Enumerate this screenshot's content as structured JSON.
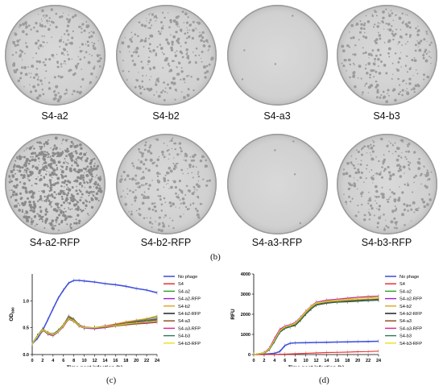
{
  "plates": [
    {
      "label": "S4-a2",
      "density": "medium"
    },
    {
      "label": "S4-b2",
      "density": "medium"
    },
    {
      "label": "S4-a3",
      "density": "none"
    },
    {
      "label": "S4-b3",
      "density": "medium"
    },
    {
      "label": "S4-a2-RFP",
      "density": "high"
    },
    {
      "label": "S4-b2-RFP",
      "density": "medium"
    },
    {
      "label": "S4-a3-RFP",
      "density": "none"
    },
    {
      "label": "S4-b3-RFP",
      "density": "medium"
    }
  ],
  "panel_labels": {
    "b": "(b)",
    "c": "(c)",
    "d": "(d)"
  },
  "chart_data": [
    {
      "type": "line",
      "ylabel_main": "OD",
      "ylabel_sub": "600",
      "xlabel": "Time post infection (h)",
      "xlim": [
        0,
        24
      ],
      "ylim": [
        0,
        1.5
      ],
      "xticks": [
        0,
        2,
        4,
        6,
        8,
        10,
        12,
        14,
        16,
        18,
        20,
        22,
        24
      ],
      "yticks": [
        0.0,
        0.5,
        1.0
      ],
      "ytick_labels": [
        "0.0",
        "0.5",
        "1.0"
      ],
      "series": [
        {
          "name": "No phage",
          "color": "#2b3ed6",
          "x": [
            0,
            1,
            2,
            3,
            4,
            5,
            6,
            7,
            8,
            9,
            10,
            12,
            14,
            16,
            18,
            20,
            22,
            24
          ],
          "values": [
            0.2,
            0.3,
            0.45,
            0.65,
            0.85,
            1.05,
            1.2,
            1.33,
            1.38,
            1.38,
            1.37,
            1.35,
            1.32,
            1.3,
            1.27,
            1.23,
            1.2,
            1.15
          ]
        },
        {
          "name": "S4",
          "color": "#e32626",
          "x": [
            0,
            1,
            2,
            3,
            4,
            5,
            6,
            7,
            8,
            9,
            10,
            12,
            14,
            16,
            18,
            20,
            22,
            24
          ],
          "values": [
            0.2,
            0.35,
            0.48,
            0.4,
            0.38,
            0.45,
            0.55,
            0.68,
            0.65,
            0.55,
            0.5,
            0.5,
            0.52,
            0.55,
            0.58,
            0.6,
            0.63,
            0.65
          ]
        },
        {
          "name": "S4-a2",
          "color": "#24a324",
          "x": [
            0,
            1,
            2,
            3,
            4,
            5,
            6,
            7,
            8,
            9,
            10,
            12,
            14,
            16,
            18,
            20,
            22,
            24
          ],
          "values": [
            0.2,
            0.35,
            0.47,
            0.4,
            0.37,
            0.44,
            0.55,
            0.72,
            0.66,
            0.55,
            0.5,
            0.5,
            0.53,
            0.56,
            0.6,
            0.63,
            0.66,
            0.7
          ]
        },
        {
          "name": "S4-a2-RFP",
          "color": "#a020c8",
          "x": [
            0,
            1,
            2,
            3,
            4,
            5,
            6,
            7,
            8,
            9,
            10,
            12,
            14,
            16,
            18,
            20,
            22,
            24
          ],
          "values": [
            0.2,
            0.34,
            0.46,
            0.38,
            0.35,
            0.42,
            0.52,
            0.66,
            0.62,
            0.53,
            0.49,
            0.48,
            0.5,
            0.53,
            0.56,
            0.58,
            0.6,
            0.62
          ]
        },
        {
          "name": "S4-b2",
          "color": "#e0a020",
          "x": [
            0,
            1,
            2,
            3,
            4,
            5,
            6,
            7,
            8,
            9,
            10,
            12,
            14,
            16,
            18,
            20,
            22,
            24
          ],
          "values": [
            0.2,
            0.35,
            0.47,
            0.41,
            0.38,
            0.45,
            0.56,
            0.69,
            0.65,
            0.56,
            0.51,
            0.5,
            0.53,
            0.57,
            0.61,
            0.64,
            0.67,
            0.72
          ]
        },
        {
          "name": "S4-b2-RFP",
          "color": "#111111",
          "x": [
            0,
            1,
            2,
            3,
            4,
            5,
            6,
            7,
            8,
            9,
            10,
            12,
            14,
            16,
            18,
            20,
            22,
            24
          ],
          "values": [
            0.2,
            0.35,
            0.46,
            0.4,
            0.37,
            0.44,
            0.54,
            0.67,
            0.63,
            0.54,
            0.5,
            0.5,
            0.52,
            0.55,
            0.58,
            0.6,
            0.62,
            0.64
          ]
        },
        {
          "name": "S4-a3",
          "color": "#8b4513",
          "x": [
            0,
            1,
            2,
            3,
            4,
            5,
            6,
            7,
            8,
            9,
            10,
            12,
            14,
            16,
            18,
            20,
            22,
            24
          ],
          "values": [
            0.2,
            0.34,
            0.45,
            0.39,
            0.36,
            0.43,
            0.53,
            0.66,
            0.62,
            0.54,
            0.5,
            0.49,
            0.51,
            0.53,
            0.55,
            0.57,
            0.58,
            0.6
          ]
        },
        {
          "name": "S4-a3-RFP",
          "color": "#e0208a",
          "x": [
            0,
            1,
            2,
            3,
            4,
            5,
            6,
            7,
            8,
            9,
            10,
            12,
            14,
            16,
            18,
            20,
            22,
            24
          ],
          "values": [
            0.2,
            0.34,
            0.46,
            0.4,
            0.37,
            0.44,
            0.55,
            0.7,
            0.65,
            0.55,
            0.51,
            0.5,
            0.53,
            0.56,
            0.59,
            0.62,
            0.64,
            0.67
          ]
        },
        {
          "name": "S4-b3",
          "color": "#2a7a5a",
          "x": [
            0,
            1,
            2,
            3,
            4,
            5,
            6,
            7,
            8,
            9,
            10,
            12,
            14,
            16,
            18,
            20,
            22,
            24
          ],
          "values": [
            0.2,
            0.35,
            0.47,
            0.41,
            0.38,
            0.45,
            0.55,
            0.68,
            0.64,
            0.55,
            0.5,
            0.5,
            0.52,
            0.55,
            0.58,
            0.61,
            0.63,
            0.66
          ]
        },
        {
          "name": "S4-b3-RFP",
          "color": "#e8e020",
          "x": [
            0,
            1,
            2,
            3,
            4,
            5,
            6,
            7,
            8,
            9,
            10,
            12,
            14,
            16,
            18,
            20,
            22,
            24
          ],
          "values": [
            0.2,
            0.34,
            0.46,
            0.4,
            0.37,
            0.43,
            0.54,
            0.67,
            0.63,
            0.54,
            0.5,
            0.5,
            0.52,
            0.54,
            0.57,
            0.59,
            0.61,
            0.63
          ]
        }
      ]
    },
    {
      "type": "line",
      "ylabel_main": "RFU",
      "ylabel_sub": "",
      "xlabel": "Time post infection (h)",
      "xlim": [
        0,
        24
      ],
      "ylim": [
        0,
        4000
      ],
      "xticks": [
        0,
        2,
        4,
        6,
        8,
        10,
        12,
        14,
        16,
        18,
        20,
        22,
        24
      ],
      "yticks": [
        0,
        1000,
        2000,
        3000,
        4000
      ],
      "ytick_labels": [
        "0",
        "1000",
        "2000",
        "3000",
        "4000"
      ],
      "series": [
        {
          "name": "No phage",
          "color": "#2b3ed6",
          "x": [
            0,
            2,
            4,
            5,
            6,
            7,
            8,
            10,
            12,
            14,
            16,
            18,
            20,
            22,
            24
          ],
          "values": [
            0,
            20,
            60,
            150,
            450,
            560,
            580,
            590,
            600,
            610,
            620,
            630,
            640,
            650,
            660
          ]
        },
        {
          "name": "S4",
          "color": "#e32626",
          "x": [
            0,
            2,
            4,
            6,
            8,
            10,
            12,
            14,
            16,
            18,
            20,
            22,
            24
          ],
          "values": [
            0,
            0,
            10,
            20,
            40,
            60,
            80,
            100,
            110,
            120,
            140,
            150,
            170
          ]
        },
        {
          "name": "S4-a2",
          "color": "#24a324",
          "x": [
            0,
            2,
            3,
            4,
            5,
            6,
            7,
            8,
            9,
            10,
            11,
            12,
            14,
            16,
            18,
            20,
            22,
            24
          ],
          "values": [
            0,
            80,
            300,
            750,
            1200,
            1400,
            1450,
            1550,
            1800,
            2100,
            2350,
            2550,
            2650,
            2700,
            2750,
            2800,
            2820,
            2850
          ]
        },
        {
          "name": "S4-a2-RFP",
          "color": "#a020c8",
          "x": [
            0,
            2,
            3,
            4,
            5,
            6,
            7,
            8,
            9,
            10,
            11,
            12,
            14,
            16,
            18,
            20,
            22,
            24
          ],
          "values": [
            0,
            90,
            320,
            800,
            1250,
            1420,
            1480,
            1600,
            1850,
            2150,
            2400,
            2600,
            2700,
            2750,
            2800,
            2850,
            2880,
            2900
          ]
        },
        {
          "name": "S4-b2",
          "color": "#e0a020",
          "x": [
            0,
            2,
            3,
            4,
            5,
            6,
            7,
            8,
            9,
            10,
            11,
            12,
            14,
            16,
            18,
            20,
            22,
            24
          ],
          "values": [
            0,
            70,
            280,
            700,
            1150,
            1350,
            1420,
            1500,
            1750,
            2050,
            2300,
            2500,
            2600,
            2650,
            2700,
            2720,
            2750,
            2780
          ]
        },
        {
          "name": "S4-b2-RFP",
          "color": "#111111",
          "x": [
            0,
            2,
            3,
            4,
            5,
            6,
            7,
            8,
            9,
            10,
            11,
            12,
            14,
            16,
            18,
            20,
            22,
            24
          ],
          "values": [
            0,
            60,
            250,
            650,
            1100,
            1300,
            1380,
            1450,
            1700,
            2000,
            2250,
            2450,
            2550,
            2600,
            2620,
            2650,
            2680,
            2700
          ]
        },
        {
          "name": "S4-a3",
          "color": "#8b4513",
          "x": [
            0,
            2,
            3,
            4,
            5,
            6,
            7,
            8,
            9,
            10,
            11,
            12,
            14,
            16,
            18,
            20,
            22,
            24
          ],
          "values": [
            0,
            70,
            270,
            680,
            1120,
            1330,
            1400,
            1480,
            1720,
            2020,
            2270,
            2480,
            2580,
            2620,
            2660,
            2700,
            2720,
            2740
          ]
        },
        {
          "name": "S4-a3-RFP",
          "color": "#e0208a",
          "x": [
            0,
            2,
            3,
            4,
            5,
            6,
            7,
            8,
            9,
            10,
            11,
            12,
            14,
            16,
            18,
            20,
            22,
            24
          ],
          "values": [
            0,
            85,
            310,
            780,
            1230,
            1400,
            1460,
            1580,
            1830,
            2130,
            2380,
            2580,
            2680,
            2730,
            2780,
            2830,
            2860,
            2880
          ]
        },
        {
          "name": "S4-b3",
          "color": "#2a7a5a",
          "x": [
            0,
            2,
            3,
            4,
            5,
            6,
            7,
            8,
            9,
            10,
            11,
            12,
            14,
            16,
            18,
            20,
            22,
            24
          ],
          "values": [
            0,
            65,
            260,
            670,
            1100,
            1310,
            1390,
            1470,
            1710,
            2010,
            2260,
            2470,
            2570,
            2610,
            2640,
            2670,
            2700,
            2720
          ]
        },
        {
          "name": "S4-b3-RFP",
          "color": "#e8e020",
          "x": [
            0,
            2,
            3,
            4,
            5,
            6,
            7,
            8,
            9,
            10,
            11,
            12,
            14,
            16,
            18,
            20,
            22,
            24
          ],
          "values": [
            0,
            75,
            290,
            720,
            1180,
            1380,
            1450,
            1560,
            1820,
            2120,
            2380,
            2560,
            2650,
            2700,
            2750,
            2800,
            2830,
            2860
          ]
        }
      ]
    }
  ]
}
